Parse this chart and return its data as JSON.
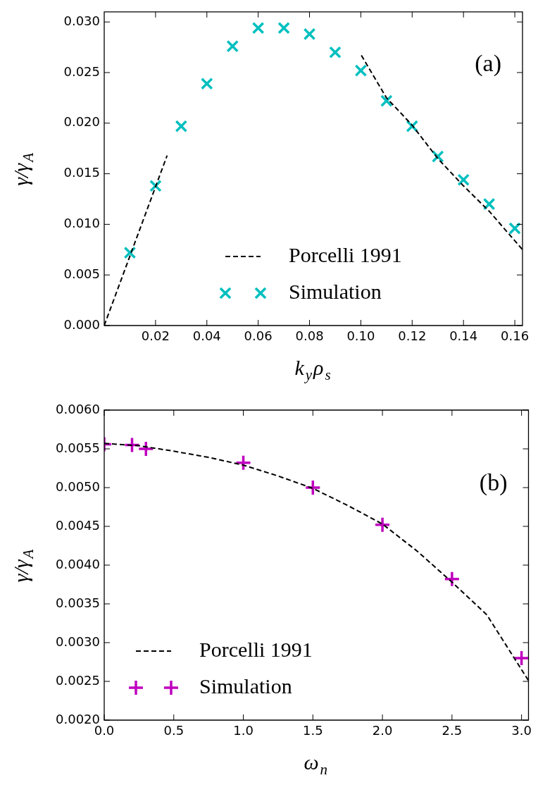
{
  "chart_data": [
    {
      "type": "scatter",
      "xlabel": "k$_{y}$ρ$_{s}$",
      "ylabel": "γ/γ$_{A}$",
      "xlim": [
        0,
        0.163
      ],
      "xticks": [
        0.02,
        0.04,
        0.06,
        0.08,
        {
          "value": 0.1,
          "label": "0.10"
        },
        0.12,
        0.14,
        0.16
      ],
      "ylim": [
        0,
        0.031
      ],
      "yticks": [
        {
          "value": 0,
          "label": "0.000"
        },
        {
          "value": 0.005,
          "label": "0.005"
        },
        {
          "value": 0.01,
          "label": "0.010"
        },
        {
          "value": 0.015,
          "label": "0.015"
        },
        {
          "value": 0.02,
          "label": "0.020"
        },
        {
          "value": 0.025,
          "label": "0.025"
        },
        {
          "value": 0.03,
          "label": "0.030"
        }
      ],
      "grid": false,
      "legend": "bottom",
      "annotations": [
        "(a)"
      ],
      "series": [
        {
          "name": "Porcelli 1991",
          "type": "line",
          "line_style": "dashed",
          "marker": "none",
          "color": "#000000",
          "x": [
            0,
            0.0245,
            0.06,
            0.1002,
            0.11,
            0.12,
            0.13,
            0.14,
            0.15,
            0.163
          ],
          "values": [
            0,
            0.0168,
            null,
            0.0267,
            0.0225,
            0.0198,
            0.0165,
            0.0138,
            0.0113,
            0.0075
          ]
        },
        {
          "name": "Simulation",
          "type": "scatter",
          "marker": "cross",
          "color": "#00bfbf",
          "x": [
            0.01,
            0.02,
            0.03,
            0.04,
            0.05,
            0.06,
            0.07,
            0.08,
            0.09,
            0.1,
            0.11,
            0.12,
            0.13,
            0.14,
            0.15,
            0.16
          ],
          "values": [
            0.0072,
            0.0138,
            0.0197,
            0.0239,
            0.0276,
            0.0294,
            0.0294,
            0.0288,
            0.027,
            0.0252,
            0.0222,
            0.0197,
            0.0167,
            0.0144,
            0.012,
            0.0096
          ]
        }
      ]
    },
    {
      "type": "scatter",
      "xlabel": "ω$_{n}$",
      "ylabel": "γ/γ$_{A}$",
      "xlim": [
        0,
        3.05
      ],
      "xticks": [
        {
          "value": 0,
          "label": "0.0"
        },
        0.5,
        {
          "value": 1,
          "label": "1.0"
        },
        1.5,
        {
          "value": 2,
          "label": "2.0"
        },
        2.5,
        {
          "value": 3,
          "label": "3.0"
        }
      ],
      "ylim": [
        0.002,
        0.006
      ],
      "yticks": [
        {
          "value": 0.002,
          "label": "0.0020"
        },
        {
          "value": 0.0025,
          "label": "0.0025"
        },
        {
          "value": 0.003,
          "label": "0.0030"
        },
        {
          "value": 0.0035,
          "label": "0.0035"
        },
        {
          "value": 0.004,
          "label": "0.0040"
        },
        {
          "value": 0.0045,
          "label": "0.0045"
        },
        {
          "value": 0.005,
          "label": "0.0050"
        },
        {
          "value": 0.0055,
          "label": "0.0055"
        },
        {
          "value": 0.006,
          "label": "0.0060"
        }
      ],
      "grid": false,
      "legend": "bottom left",
      "annotations": [
        "(b)"
      ],
      "series": [
        {
          "name": "Porcelli 1991",
          "type": "line",
          "line_style": "dashed",
          "marker": "none",
          "color": "#000000",
          "x": [
            0,
            0.25,
            0.5,
            0.75,
            1,
            1.25,
            1.5,
            1.75,
            2,
            2.25,
            2.5,
            2.75,
            3.05
          ],
          "values": [
            0.00557,
            0.00554,
            0.00547,
            0.00539,
            0.00529,
            0.00515,
            0.00499,
            0.00477,
            0.00453,
            0.00418,
            0.00378,
            0.00336,
            0.00251
          ]
        },
        {
          "name": "Simulation",
          "type": "scatter",
          "marker": "plus",
          "color": "#bf00bf",
          "x": [
            0,
            0.2,
            0.3,
            1,
            1.5,
            2,
            2.5,
            3
          ],
          "values": [
            0.00556,
            0.00555,
            0.0055,
            0.00532,
            0.005,
            0.00452,
            0.00382,
            0.0028
          ]
        }
      ]
    }
  ]
}
